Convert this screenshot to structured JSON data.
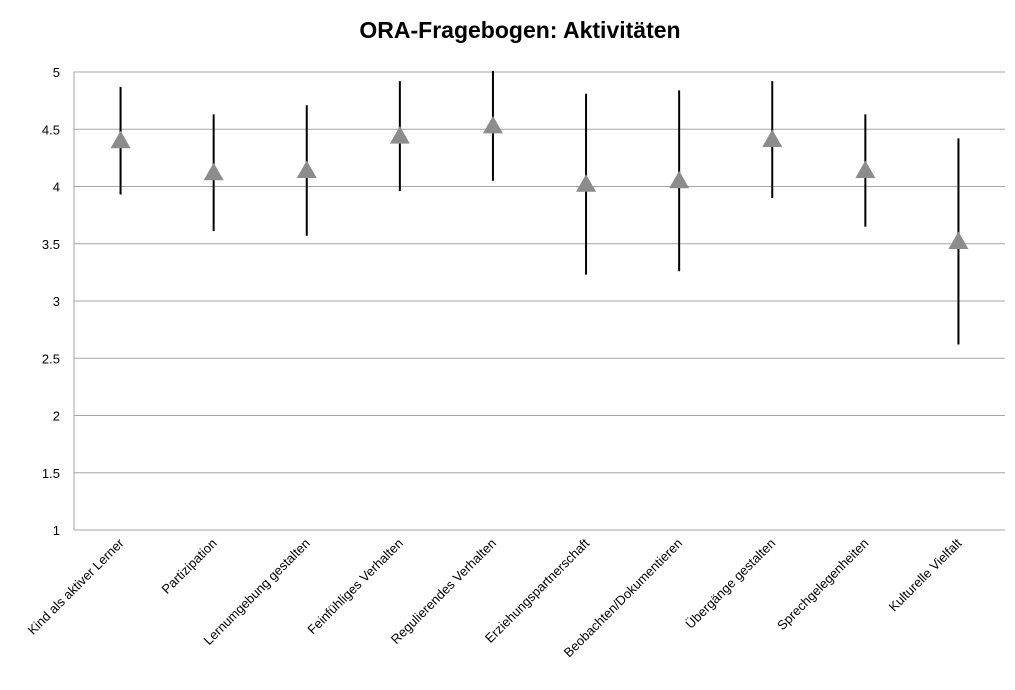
{
  "chart_data": {
    "type": "errorbar",
    "title": "ORA-Fragebogen: Aktivitäten",
    "categories": [
      "Kind als aktiver Lerner",
      "Partizipation",
      "Lernumgebung gestalten",
      "Feinfühliges Verhalten",
      "Regulierendes Verhalten",
      "Erziehungspartnerschaft",
      "Beobachten/Dokumentieren",
      "Übergänge gestalten",
      "Sprechgelegenheiten",
      "Kulturelle Vielfalt"
    ],
    "values": [
      4.4,
      4.12,
      4.14,
      4.44,
      4.53,
      4.02,
      4.05,
      4.41,
      4.14,
      3.52
    ],
    "errors": [
      0.47,
      0.51,
      0.57,
      0.48,
      0.48,
      0.79,
      0.79,
      0.51,
      0.49,
      0.9
    ],
    "color": "#8c8c8c",
    "ylim": [
      1,
      5
    ],
    "yticks": [
      1,
      1.5,
      2,
      2.5,
      3,
      3.5,
      4,
      4.5,
      5
    ],
    "grid": true
  }
}
